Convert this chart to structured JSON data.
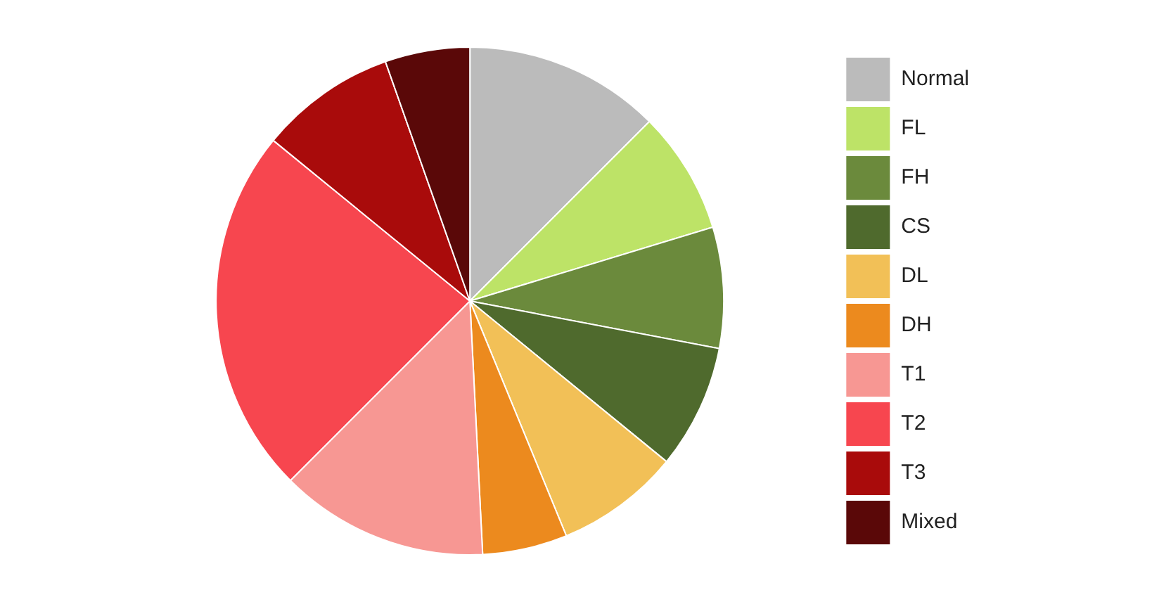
{
  "chart_data": {
    "type": "pie",
    "categories": [
      "Normal",
      "FL",
      "FH",
      "CS",
      "DL",
      "DH",
      "T1",
      "T2",
      "T3",
      "Mixed"
    ],
    "values": [
      12.5,
      7.8,
      7.7,
      7.9,
      7.9,
      5.4,
      13.3,
      23.4,
      8.7,
      5.4
    ],
    "colors": [
      "#bbbbbb",
      "#bde367",
      "#6b8a3c",
      "#4f6a2d",
      "#f2c057",
      "#ec8a1e",
      "#f79793",
      "#f7464f",
      "#a90b0b",
      "#5a0808"
    ],
    "legend": "right"
  }
}
